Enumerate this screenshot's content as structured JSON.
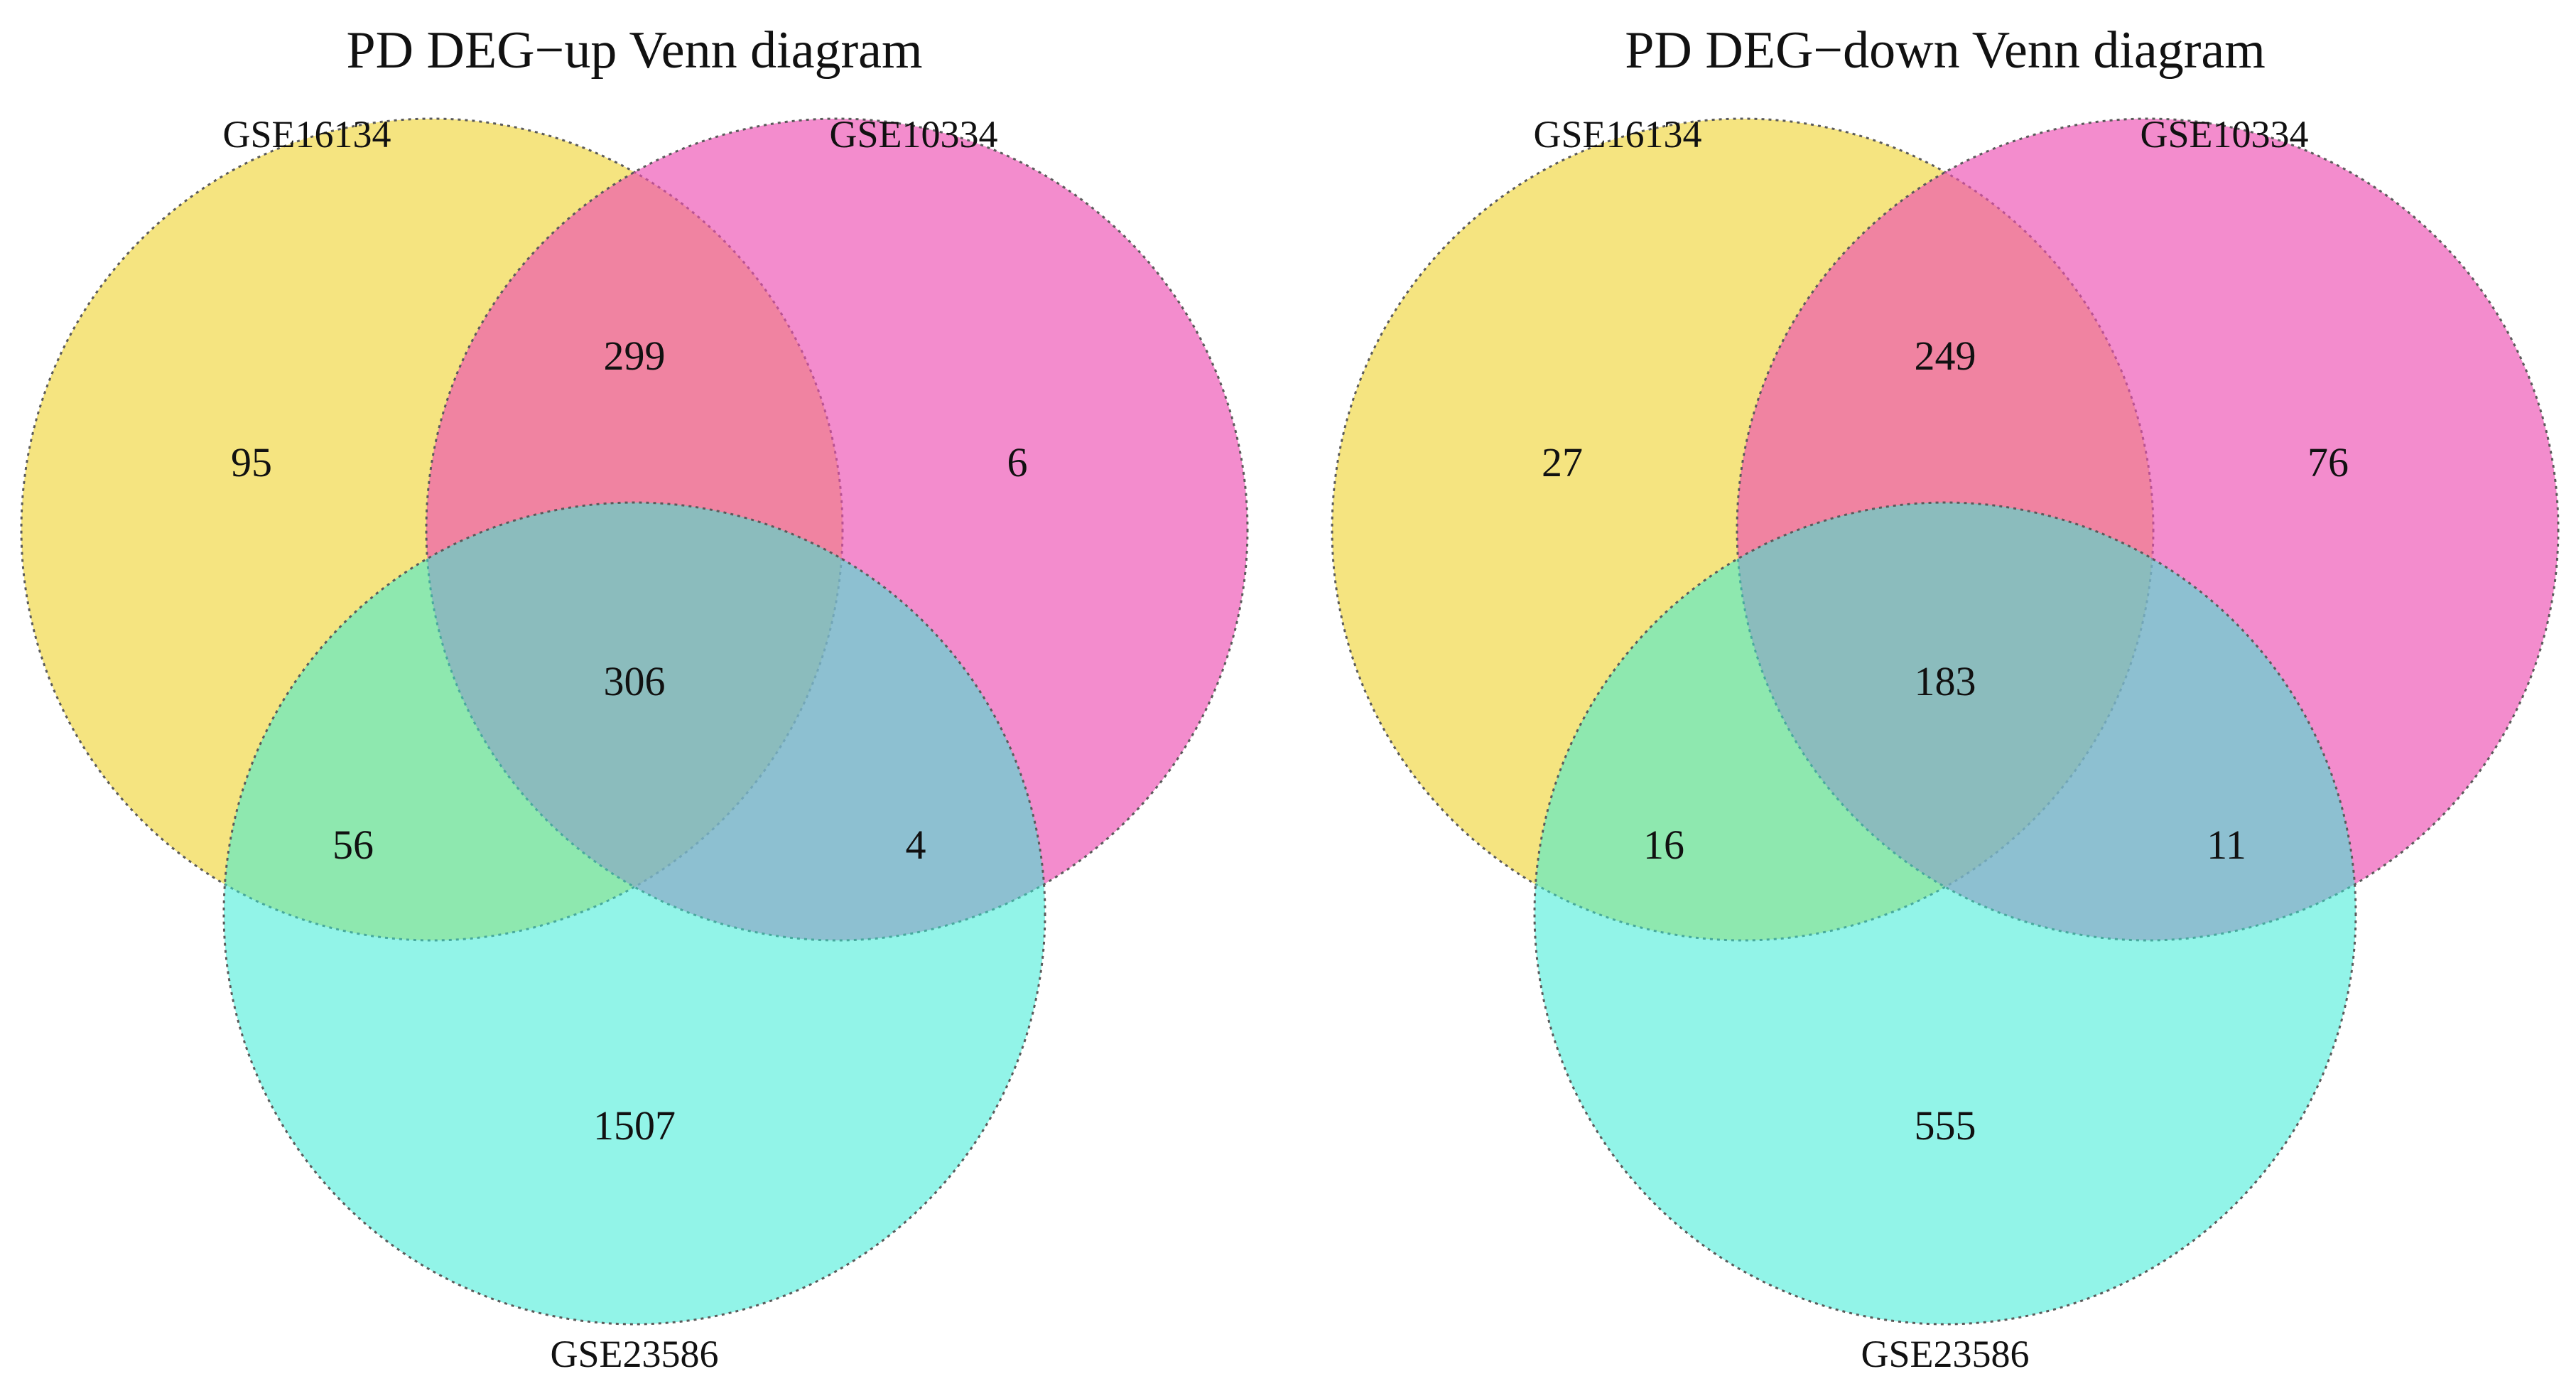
{
  "diagrams": [
    {
      "title": "PD DEG−up Venn diagram",
      "sets": [
        {
          "name": "GSE16134",
          "color": "#F0D53C"
        },
        {
          "name": "GSE10334",
          "color": "#EC4FB2"
        },
        {
          "name": "GSE23586",
          "color": "#38EBD6"
        }
      ],
      "regions": {
        "only_a": "95",
        "a_b": "299",
        "only_b": "6",
        "a_b_c": "306",
        "a_c": "56",
        "b_c": "4",
        "only_c": "1507"
      }
    },
    {
      "title": "PD DEG−down Venn diagram",
      "sets": [
        {
          "name": "GSE16134",
          "color": "#F0D53C"
        },
        {
          "name": "GSE10334",
          "color": "#EC4FB2"
        },
        {
          "name": "GSE23586",
          "color": "#38EBD6"
        }
      ],
      "regions": {
        "only_a": "27",
        "a_b": "249",
        "only_b": "76",
        "a_b_c": "183",
        "a_c": "16",
        "b_c": "11",
        "only_c": "555"
      }
    }
  ]
}
